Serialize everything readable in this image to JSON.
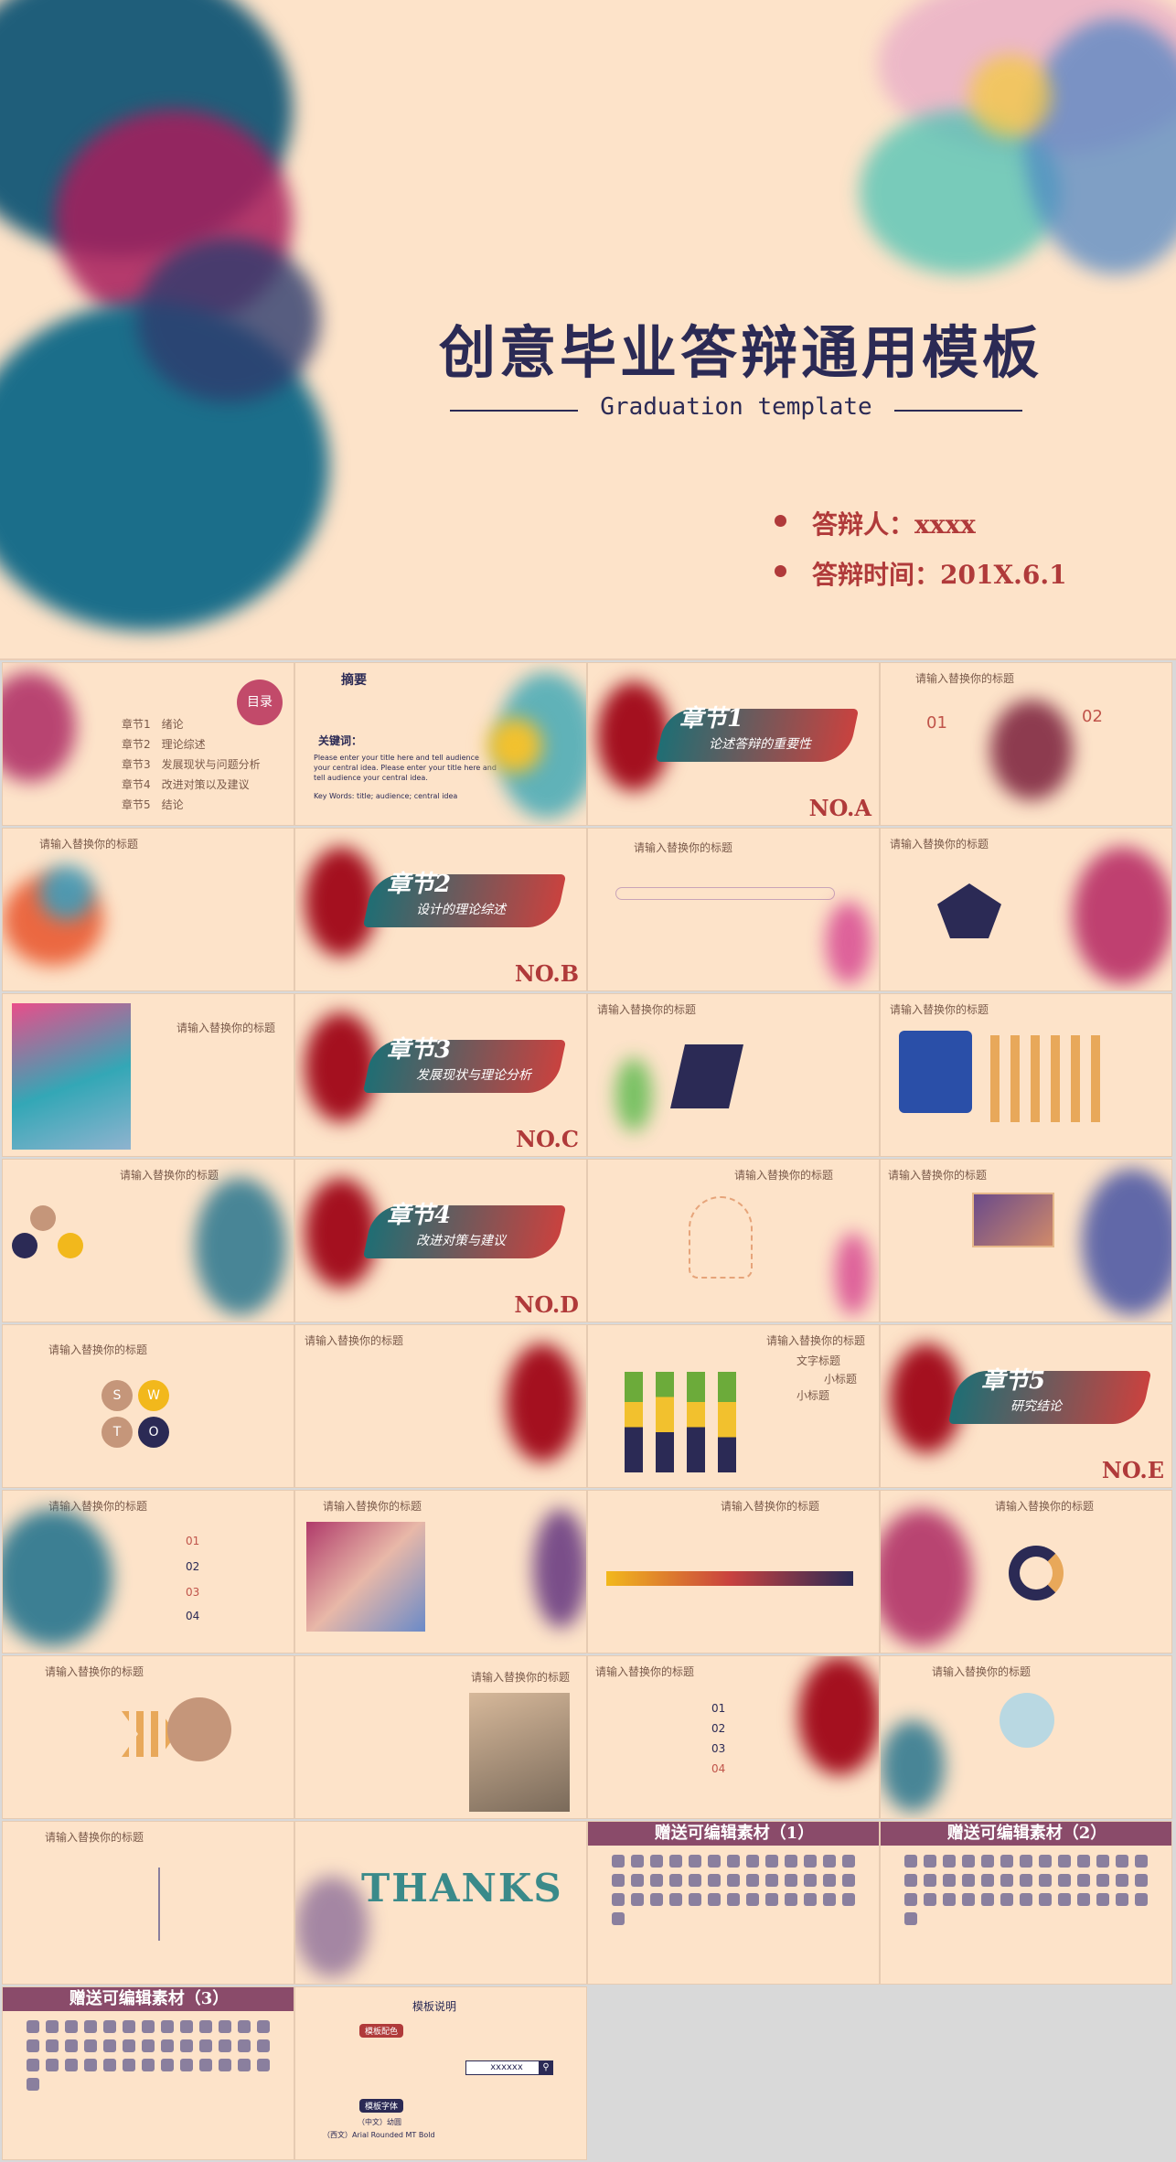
{
  "hero": {
    "title": "创意毕业答辩通用模板",
    "subtitle": "Graduation template",
    "speaker": "答辩人：xxxx",
    "date": "答辩时间：201X.6.1"
  },
  "toc": {
    "badge": "目录",
    "items": [
      {
        "chapter": "章节1",
        "label": "绪论"
      },
      {
        "chapter": "章节2",
        "label": "理论综述"
      },
      {
        "chapter": "章节3",
        "label": "发展现状与问题分析"
      },
      {
        "chapter": "章节4",
        "label": "改进对策以及建议"
      },
      {
        "chapter": "章节5",
        "label": "结论"
      }
    ]
  },
  "abstract": {
    "title": "摘要",
    "keywords_label": "关键词：",
    "keywords_en": "Key Words: title; audience; central idea",
    "body_en": "Please enter your title here and tell audience your central idea. Please enter your title here and tell audience your central idea."
  },
  "chapters": [
    {
      "title": "章节1",
      "sub": "论述答辩的重要性",
      "no": "NO.A"
    },
    {
      "title": "章节2",
      "sub": "设计的理论综述",
      "no": "NO.B"
    },
    {
      "title": "章节3",
      "sub": "发展现状与理论分析",
      "no": "NO.C"
    },
    {
      "title": "章节4",
      "sub": "改进对策与建议",
      "no": "NO.D"
    },
    {
      "title": "章节5",
      "sub": "研究结论",
      "no": "NO.E"
    }
  ],
  "slide_title": "请输入替换你的标题",
  "numbers": [
    "01",
    "02",
    "03",
    "04"
  ],
  "swot": [
    "S",
    "W",
    "T",
    "O"
  ],
  "chart_titles": {
    "main": "文字标题",
    "sub1": "小标题",
    "sub2": "小标题"
  },
  "materials": [
    "赠送可编辑素材（1）",
    "赠送可编辑素材（2）",
    "赠送可编辑素材（3）"
  ],
  "thanks": "THANKS",
  "guide": {
    "title": "模板说明",
    "colors_label": "模板配色",
    "fonts_label": "模板字体",
    "search_value": "xxxxxx",
    "font_cn": "（中文）幼圆",
    "font_en": "（西文）Arial Rounded MT Bold"
  },
  "colors": {
    "bg": "#fde3c9",
    "navy": "#2b2a55",
    "red": "#b03a3a",
    "plum": "#8a4b6a"
  }
}
